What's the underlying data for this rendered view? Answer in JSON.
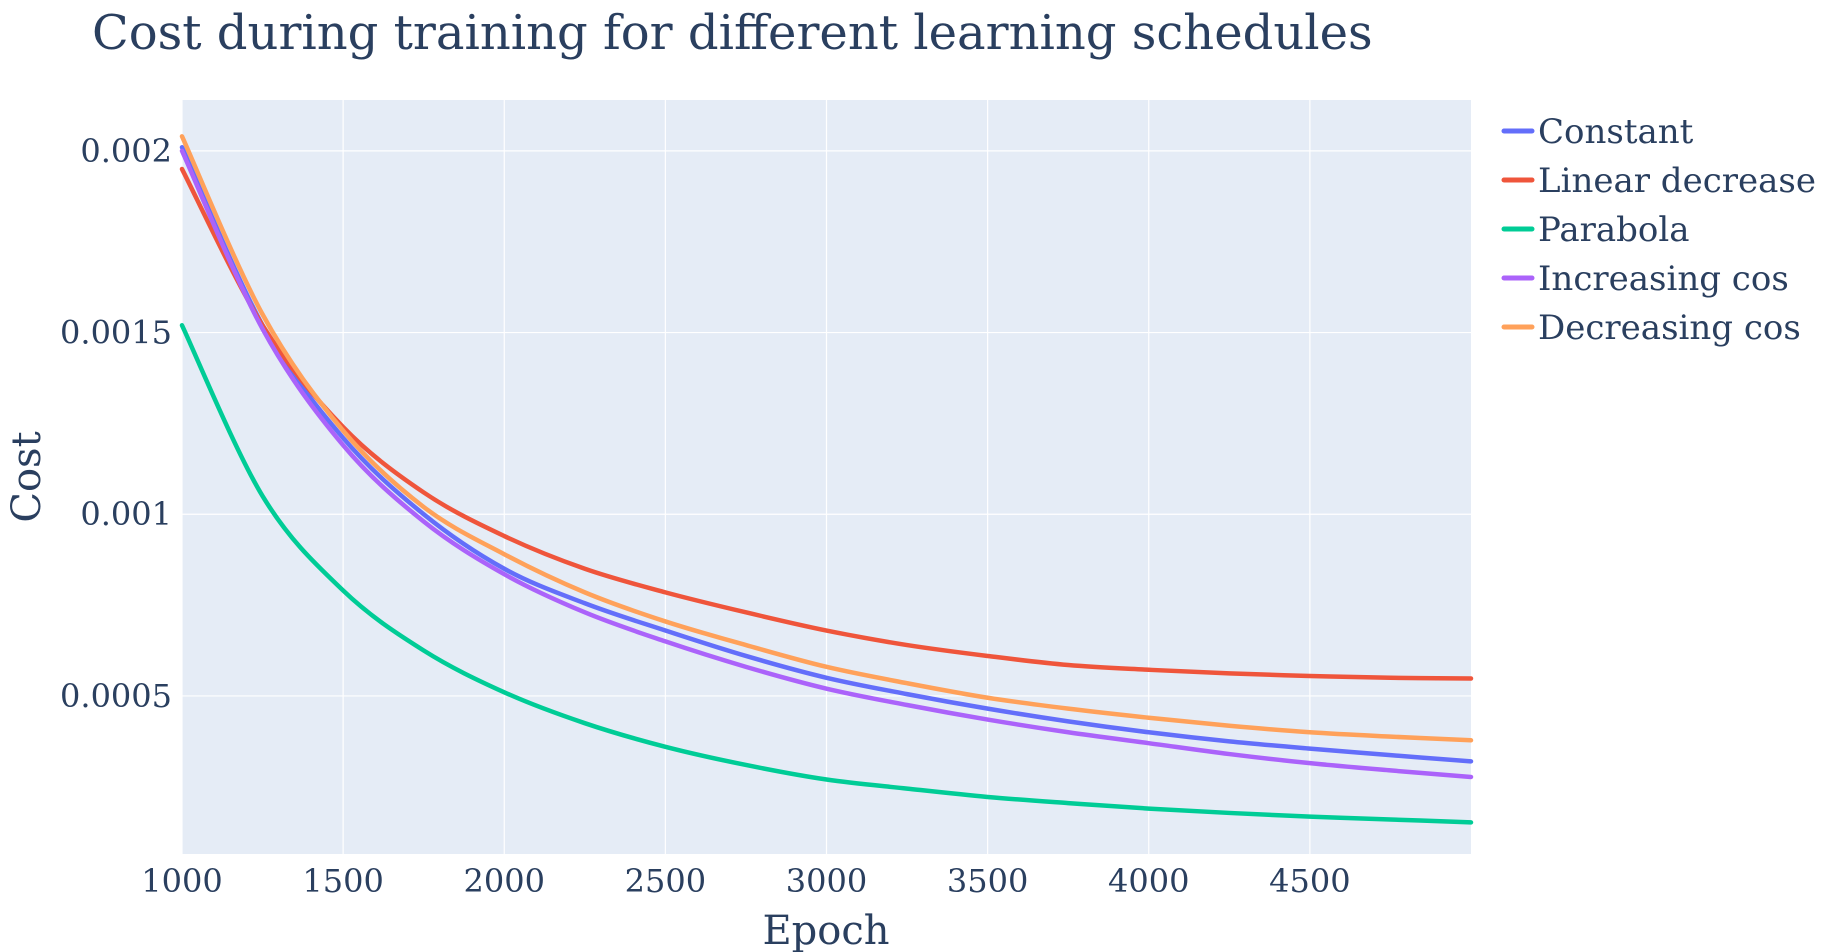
{
  "chart_data": {
    "type": "line",
    "title": "Cost during training for different learning schedules",
    "xlabel": "Epoch",
    "ylabel": "Cost",
    "xlim": [
      1000,
      5000
    ],
    "ylim": [
      6.5e-05,
      0.00214
    ],
    "x_ticks": [
      1000,
      1500,
      2000,
      2500,
      3000,
      3500,
      4000,
      4500
    ],
    "x_tick_labels": [
      "1000",
      "1500",
      "2000",
      "2500",
      "3000",
      "3500",
      "4000",
      "4500"
    ],
    "y_ticks": [
      0.0005,
      0.001,
      0.0015,
      0.002
    ],
    "y_tick_labels": [
      "0.0005",
      "0.001",
      "0.0015",
      "0.002"
    ],
    "grid": true,
    "legend_position": "top-right-outside",
    "x": [
      1000,
      1250,
      1500,
      1750,
      2000,
      2250,
      2500,
      2750,
      3000,
      3250,
      3500,
      3750,
      4000,
      4250,
      4500,
      4750,
      5000
    ],
    "series": [
      {
        "name": "Constant",
        "color": "#636efa",
        "values": [
          0.00201,
          0.00152,
          0.00121,
          0.001,
          0.00085,
          0.000755,
          0.00068,
          0.00061,
          0.00055,
          0.000505,
          0.000465,
          0.00043,
          0.0004,
          0.000375,
          0.000355,
          0.000337,
          0.00032
        ]
      },
      {
        "name": "Linear decrease",
        "color": "#ef553b",
        "values": [
          0.00195,
          0.00152,
          0.00124,
          0.00106,
          0.00094,
          0.00085,
          0.000785,
          0.00073,
          0.00068,
          0.00064,
          0.00061,
          0.000585,
          0.000572,
          0.000562,
          0.000555,
          0.00055,
          0.000548
        ]
      },
      {
        "name": "Parabola",
        "color": "#00cc96",
        "values": [
          0.00152,
          0.00105,
          0.00079,
          0.000625,
          0.00051,
          0.000425,
          0.00036,
          0.00031,
          0.00027,
          0.000245,
          0.000222,
          0.000205,
          0.00019,
          0.000178,
          0.000168,
          0.00016,
          0.000152
        ]
      },
      {
        "name": "Increasing cos",
        "color": "#ab63fa",
        "values": [
          0.002,
          0.00151,
          0.00119,
          0.00098,
          0.000835,
          0.00073,
          0.00065,
          0.00058,
          0.00052,
          0.000475,
          0.000435,
          0.0004,
          0.00037,
          0.00034,
          0.000315,
          0.000295,
          0.000277
        ]
      },
      {
        "name": "Decreasing cos",
        "color": "#ffa15a",
        "values": [
          0.00204,
          0.00155,
          0.00123,
          0.00102,
          0.00089,
          0.000785,
          0.000705,
          0.00064,
          0.00058,
          0.000535,
          0.000495,
          0.000465,
          0.00044,
          0.000418,
          0.0004,
          0.000388,
          0.000378
        ]
      }
    ]
  }
}
